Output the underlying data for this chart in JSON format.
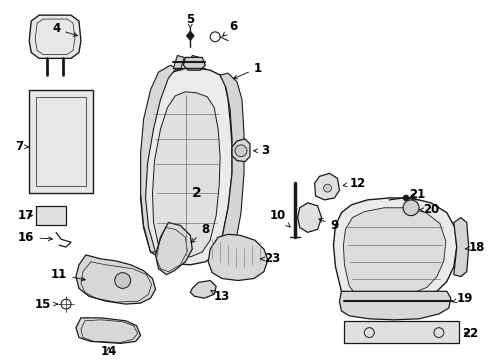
{
  "background_color": "#ffffff",
  "line_color": "#1a1a1a",
  "fill_color": "#f0f0f0",
  "font_size": 8.5,
  "figsize": [
    4.89,
    3.6
  ],
  "dpi": 100
}
